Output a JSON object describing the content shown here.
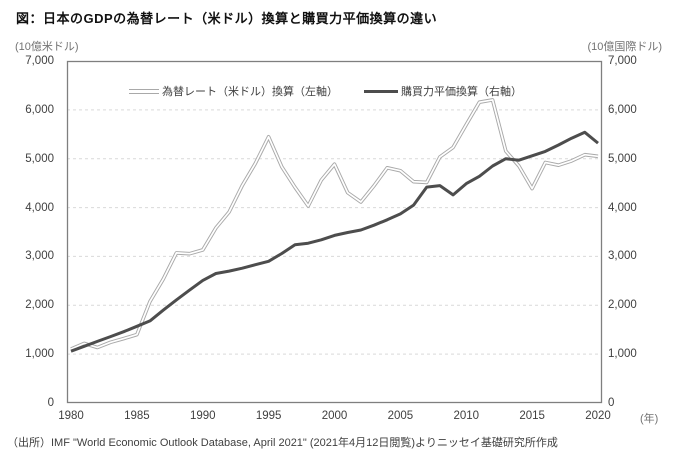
{
  "title": "図：日本のGDPの為替レート（米ドル）換算と購買力平価換算の違い",
  "axes": {
    "left_unit": "(10億米ドル)",
    "right_unit": "(10億国際ドル)",
    "x_unit": "(年)"
  },
  "source": "（出所）IMF \"World Economic Outlook Database, April 2021\" (2021年4月12日閲覧)よりニッセイ基礎研究所作成",
  "colors": {
    "exchange_line_edge": "#a9a9a9",
    "exchange_line_core": "#ffffff",
    "ppp_line": "#4d4d4d",
    "grid": "#d9d9d9",
    "frame": "#7f7f7f",
    "tick_text": "#404040",
    "unit_text": "#737373"
  },
  "chart_data": {
    "type": "line",
    "title": "図：日本のGDPの為替レート（米ドル）換算と購買力平価換算の違い",
    "xlabel": "(年)",
    "ylabel_left": "(10億米ドル)",
    "ylabel_right": "(10億国際ドル)",
    "ylim": [
      0,
      7000
    ],
    "grid": "horizontal-dashed",
    "legend_position": "top-inside",
    "x": [
      1980,
      1981,
      1982,
      1983,
      1984,
      1985,
      1986,
      1987,
      1988,
      1989,
      1990,
      1991,
      1992,
      1993,
      1994,
      1995,
      1996,
      1997,
      1998,
      1999,
      2000,
      2001,
      2002,
      2003,
      2004,
      2005,
      2006,
      2007,
      2008,
      2009,
      2010,
      2011,
      2012,
      2013,
      2014,
      2015,
      2016,
      2017,
      2018,
      2019,
      2020
    ],
    "x_ticks": [
      1980,
      1985,
      1990,
      1995,
      2000,
      2005,
      2010,
      2015,
      2020
    ],
    "y_ticks": [
      7000,
      6000,
      5000,
      4000,
      3000,
      2000,
      1000,
      0
    ],
    "series": [
      {
        "name": "為替レート（米ドル）換算（左軸）",
        "axis": "left",
        "style": "double-gray",
        "values": [
          1105,
          1219,
          1135,
          1243,
          1318,
          1399,
          2079,
          2533,
          3072,
          3055,
          3133,
          3584,
          3909,
          4454,
          4907,
          5449,
          4834,
          4415,
          4033,
          4562,
          4888,
          4304,
          4115,
          4446,
          4815,
          4755,
          4530,
          4515,
          5038,
          5231,
          5700,
          6157,
          6203,
          5156,
          4850,
          4389,
          4923,
          4867,
          4955,
          5082,
          5049
        ]
      },
      {
        "name": "購買力平価換算（右軸）",
        "axis": "right",
        "style": "solid-dark",
        "values": [
          1060,
          1160,
          1260,
          1360,
          1460,
          1570,
          1680,
          1900,
          2110,
          2310,
          2510,
          2650,
          2700,
          2760,
          2830,
          2900,
          3060,
          3240,
          3270,
          3340,
          3430,
          3490,
          3540,
          3640,
          3750,
          3870,
          4050,
          4420,
          4450,
          4260,
          4490,
          4640,
          4850,
          5000,
          4970,
          5060,
          5150,
          5280,
          5420,
          5540,
          5320
        ]
      }
    ]
  }
}
